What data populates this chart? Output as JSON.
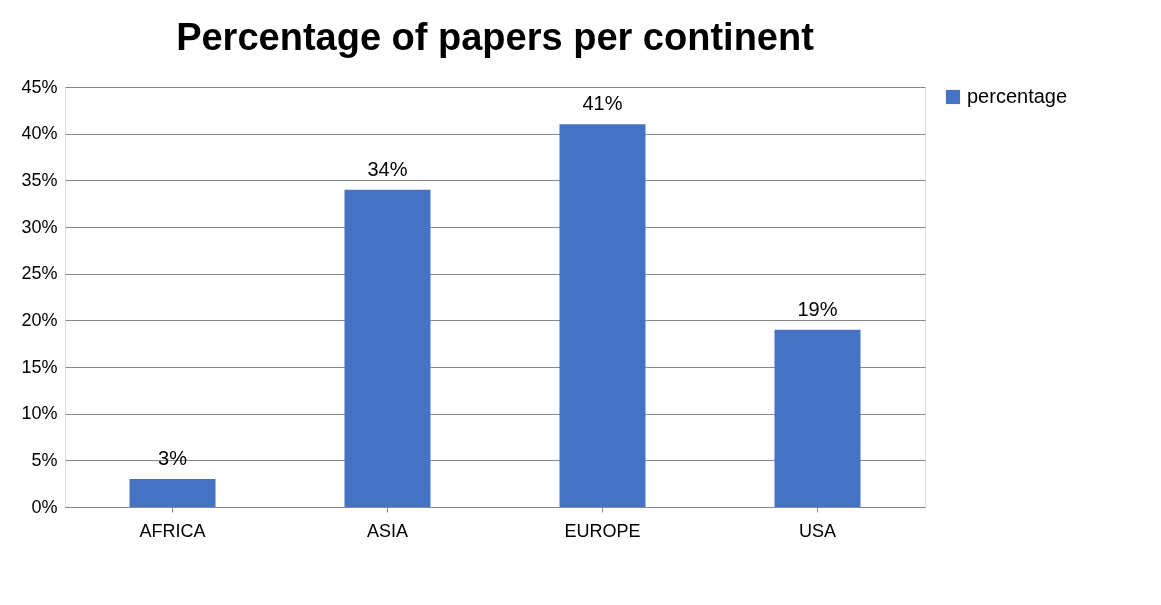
{
  "chart_data": {
    "type": "bar",
    "title": "Percentage of papers per continent",
    "categories": [
      "AFRICA",
      "ASIA",
      "EUROPE",
      "USA"
    ],
    "series": [
      {
        "name": "percentage",
        "color": "#4472c4",
        "values": [
          3,
          34,
          41,
          19
        ],
        "value_labels": [
          "3%",
          "34%",
          "41%",
          "19%"
        ]
      }
    ],
    "ylim": [
      0,
      45
    ],
    "yticks": [
      {
        "value": 0,
        "label": "0%"
      },
      {
        "value": 5,
        "label": "5%"
      },
      {
        "value": 10,
        "label": "10%"
      },
      {
        "value": 15,
        "label": "15%"
      },
      {
        "value": 20,
        "label": "20%"
      },
      {
        "value": 25,
        "label": "25%"
      },
      {
        "value": 30,
        "label": "30%"
      },
      {
        "value": 35,
        "label": "35%"
      },
      {
        "value": 40,
        "label": "40%"
      },
      {
        "value": 45,
        "label": "45%"
      }
    ],
    "grid": "y",
    "legend": "right"
  }
}
